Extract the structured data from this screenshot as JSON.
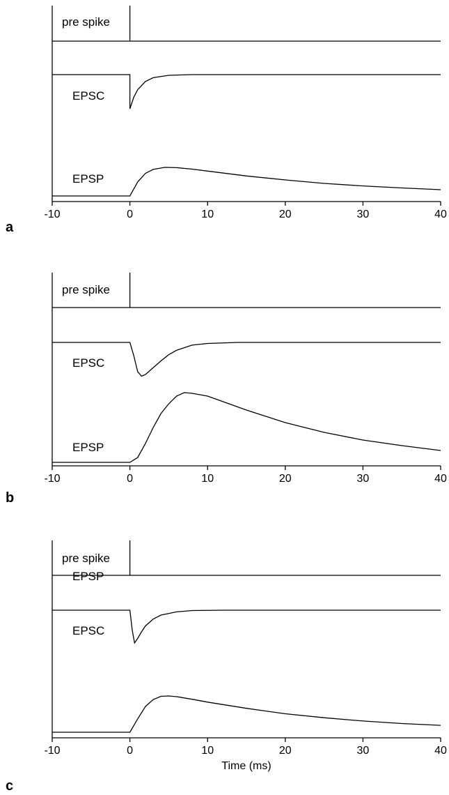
{
  "chart_data": [
    {
      "type": "line",
      "panel": "a",
      "xlabel": "",
      "xlim": [
        -10,
        40
      ],
      "xticks": [
        "-10",
        "0",
        "10",
        "20",
        "30",
        "40"
      ],
      "trace_labels": {
        "pre": "pre spike",
        "epsc": "EPSC",
        "epsp": "EPSP"
      },
      "series": [
        {
          "name": "pre spike",
          "x": [
            -10,
            0,
            0,
            0,
            40
          ],
          "y": [
            0,
            0,
            1,
            0,
            0
          ]
        },
        {
          "name": "EPSC",
          "x": [
            -10,
            0,
            0,
            0.5,
            1,
            2,
            3,
            5,
            8,
            12,
            20,
            40
          ],
          "y": [
            0,
            0,
            -1,
            -0.66,
            -0.44,
            -0.2,
            -0.09,
            -0.02,
            0,
            0,
            0,
            0
          ]
        },
        {
          "name": "EPSP",
          "x": [
            -10,
            0,
            1,
            2,
            3,
            4.5,
            6,
            8,
            10,
            15,
            20,
            25,
            30,
            35,
            40
          ],
          "y": [
            0,
            0,
            0.49,
            0.79,
            0.93,
            1.0,
            0.99,
            0.94,
            0.87,
            0.7,
            0.56,
            0.44,
            0.35,
            0.28,
            0.22
          ]
        }
      ]
    },
    {
      "type": "line",
      "panel": "b",
      "xlabel": "",
      "xlim": [
        -10,
        40
      ],
      "xticks": [
        "-10",
        "0",
        "10",
        "20",
        "30",
        "40"
      ],
      "trace_labels": {
        "pre": "pre spike",
        "epsc": "EPSC",
        "epsp": "EPSP"
      },
      "series": [
        {
          "name": "pre spike",
          "x": [
            -10,
            0,
            0,
            0,
            40
          ],
          "y": [
            0,
            0,
            1,
            0,
            0
          ]
        },
        {
          "name": "EPSC",
          "x": [
            -10,
            0,
            0.5,
            1,
            1.5,
            2,
            3,
            4,
            5,
            6,
            8,
            10,
            14,
            20,
            40
          ],
          "y": [
            0,
            0,
            -0.39,
            -0.86,
            -0.99,
            -0.94,
            -0.74,
            -0.54,
            -0.36,
            -0.23,
            -0.08,
            -0.03,
            0,
            0,
            0
          ]
        },
        {
          "name": "EPSP",
          "x": [
            -10,
            0,
            1,
            2,
            3,
            4,
            5,
            6,
            7,
            8,
            10,
            12,
            15,
            20,
            25,
            30,
            35,
            40
          ],
          "y": [
            0,
            0,
            0.07,
            0.27,
            0.5,
            0.7,
            0.84,
            0.95,
            1.0,
            0.99,
            0.95,
            0.87,
            0.75,
            0.57,
            0.43,
            0.32,
            0.24,
            0.17
          ]
        }
      ]
    },
    {
      "type": "line",
      "panel": "c",
      "xlabel": "Time (ms)",
      "xlim": [
        -10,
        40
      ],
      "xticks": [
        "-10",
        "0",
        "10",
        "20",
        "30",
        "40"
      ],
      "trace_labels": {
        "pre": "pre spike",
        "epsc": "EPSC",
        "epsp": "EPSP"
      },
      "series": [
        {
          "name": "pre spike",
          "x": [
            -10,
            0,
            0,
            0,
            40
          ],
          "y": [
            0,
            0,
            1,
            0,
            0
          ]
        },
        {
          "name": "EPSC",
          "x": [
            -10,
            0,
            0.3,
            0.6,
            1,
            1.5,
            2,
            3,
            4,
            6,
            8,
            12,
            20,
            40
          ],
          "y": [
            0,
            0,
            -0.6,
            -1,
            -0.86,
            -0.66,
            -0.48,
            -0.27,
            -0.15,
            -0.05,
            -0.01,
            0,
            0,
            0
          ]
        },
        {
          "name": "EPSP",
          "x": [
            -10,
            0,
            1,
            2,
            3,
            4,
            5,
            6,
            8,
            10,
            15,
            20,
            25,
            30,
            35,
            40
          ],
          "y": [
            0,
            0,
            0.37,
            0.71,
            0.9,
            0.99,
            1.0,
            0.98,
            0.91,
            0.83,
            0.66,
            0.51,
            0.4,
            0.31,
            0.24,
            0.19
          ]
        }
      ]
    }
  ]
}
